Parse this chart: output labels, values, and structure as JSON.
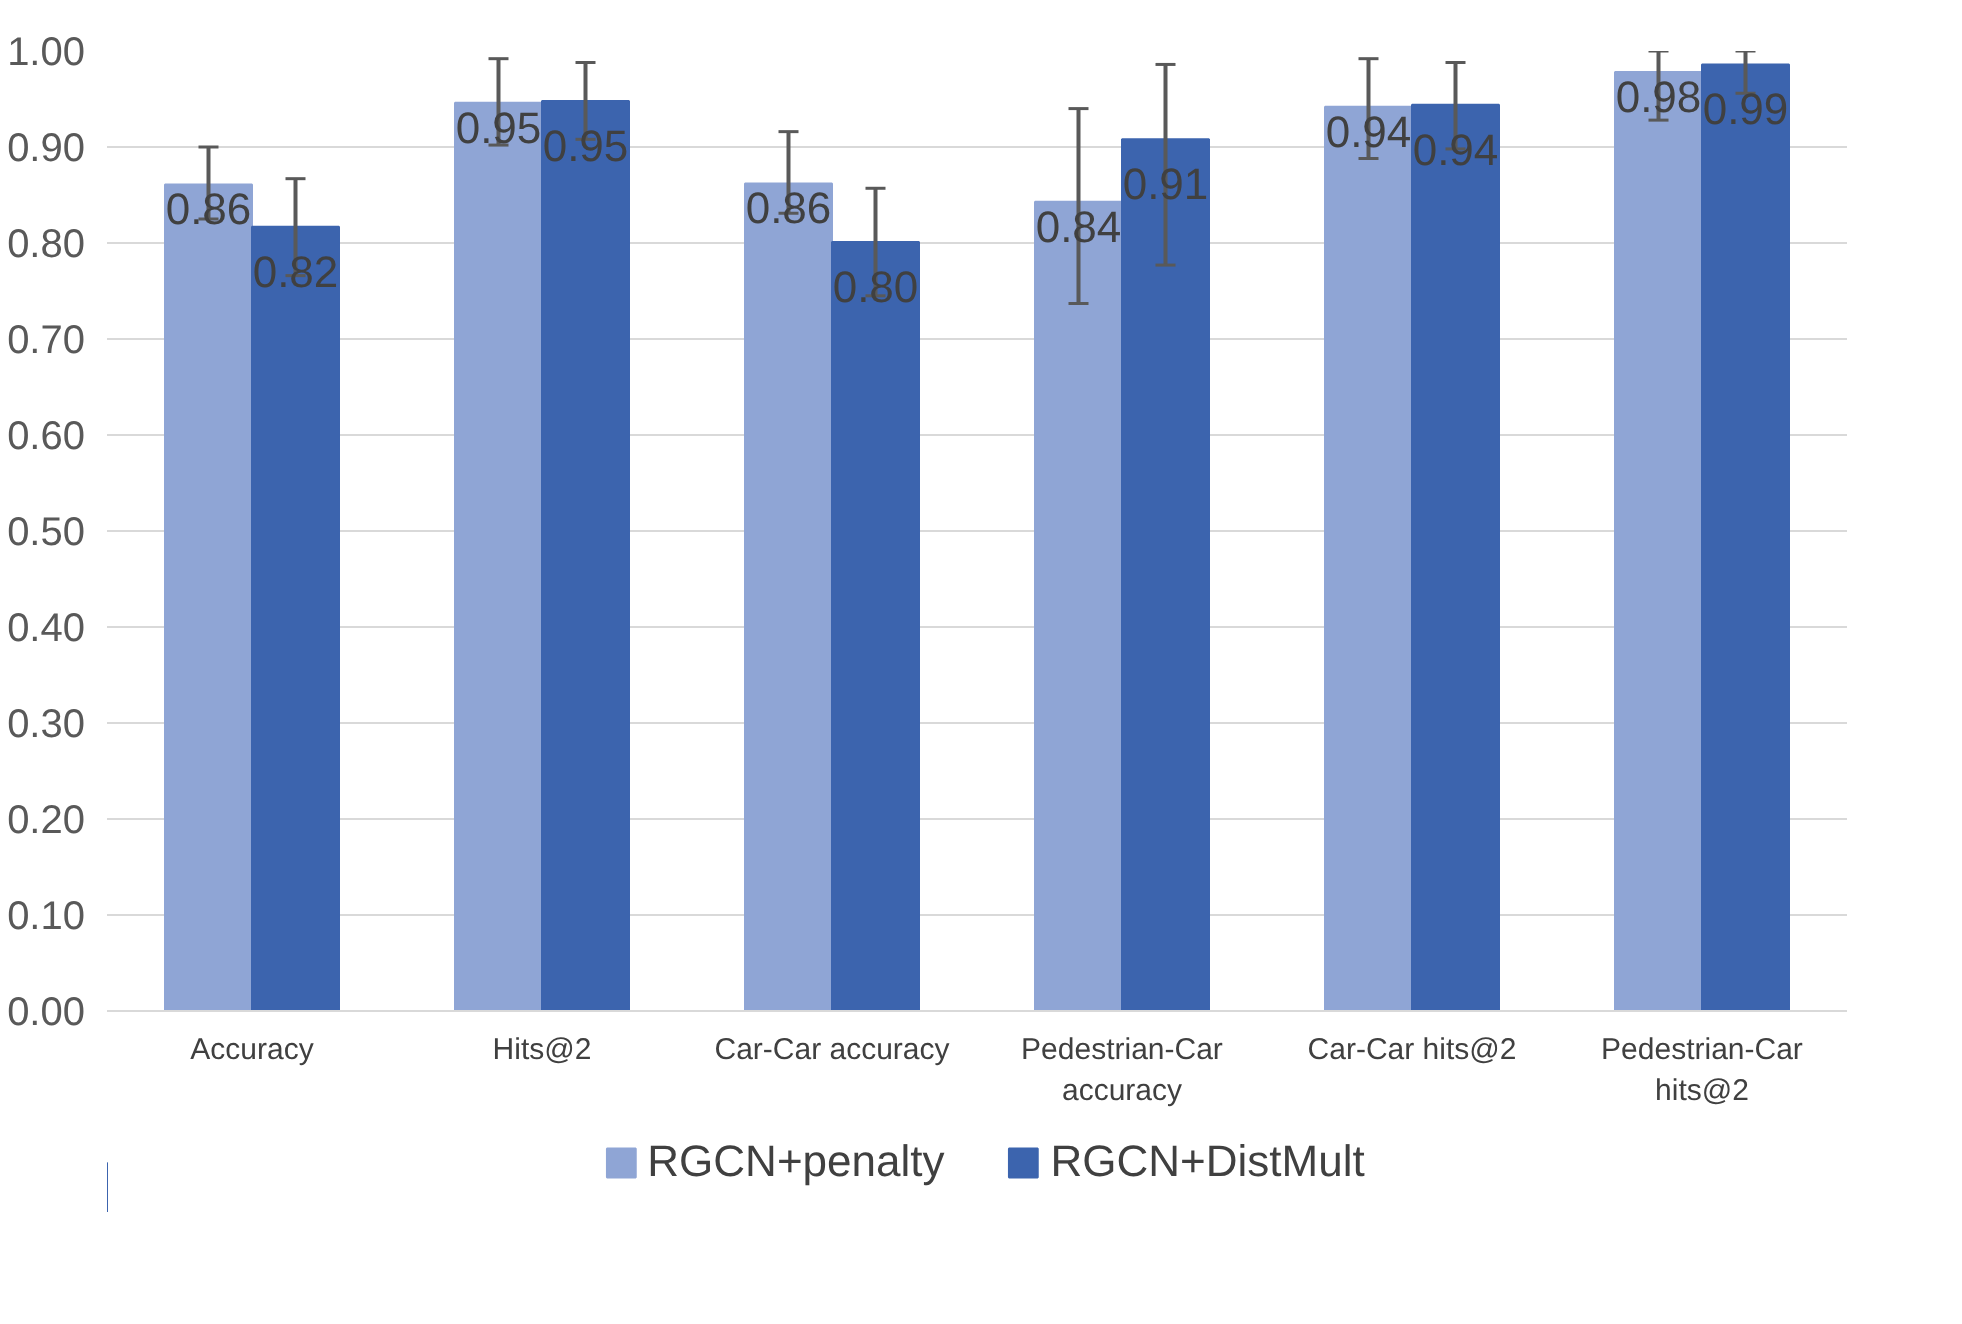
{
  "chart_data": {
    "type": "bar",
    "categories": [
      "Accuracy",
      "Hits@2",
      "Car-Car accuracy",
      "Pedestrian-Car accuracy",
      "Car-Car hits@2",
      "Pedestrian-Car hits@2"
    ],
    "series": [
      {
        "name": "RGCN+penalty",
        "color": "#8fa5d5",
        "values": [
          0.861,
          0.946,
          0.862,
          0.843,
          0.942,
          0.978
        ],
        "value_labels": [
          "0.86",
          "0.95",
          "0.86",
          "0.84",
          "0.94",
          "0.98"
        ],
        "errors": [
          [
            0.825,
            0.9
          ],
          [
            0.902,
            0.992
          ],
          [
            0.831,
            0.916
          ],
          [
            0.737,
            0.94
          ],
          [
            0.888,
            0.992
          ],
          [
            0.928,
            1.0
          ]
        ]
      },
      {
        "name": "RGCN+DistMult",
        "color": "#3c64ae",
        "values": [
          0.817,
          0.948,
          0.801,
          0.908,
          0.944,
          0.986
        ],
        "value_labels": [
          "0.82",
          "0.95",
          "0.80",
          "0.91",
          "0.94",
          "0.99"
        ],
        "errors": [
          [
            0.766,
            0.867
          ],
          [
            0.908,
            0.988
          ],
          [
            0.745,
            0.857
          ],
          [
            0.777,
            0.986
          ],
          [
            0.898,
            0.988
          ],
          [
            0.956,
            1.0
          ]
        ]
      }
    ],
    "ylim": [
      0,
      1.0
    ],
    "yticks": [
      {
        "value": 0,
        "label": "0.00"
      },
      {
        "value": 0.1,
        "label": "0.10"
      },
      {
        "value": 0.2,
        "label": "0.20"
      },
      {
        "value": 0.3,
        "label": "0.30"
      },
      {
        "value": 0.4,
        "label": "0.40"
      },
      {
        "value": 0.5,
        "label": "0.50"
      },
      {
        "value": 0.6,
        "label": "0.60"
      },
      {
        "value": 0.7,
        "label": "0.70"
      },
      {
        "value": 0.8,
        "label": "0.80"
      },
      {
        "value": 0.9,
        "label": "0.90"
      },
      {
        "value": 1.0,
        "label": "1.00"
      }
    ],
    "grid": "y",
    "legend": "bottom"
  }
}
